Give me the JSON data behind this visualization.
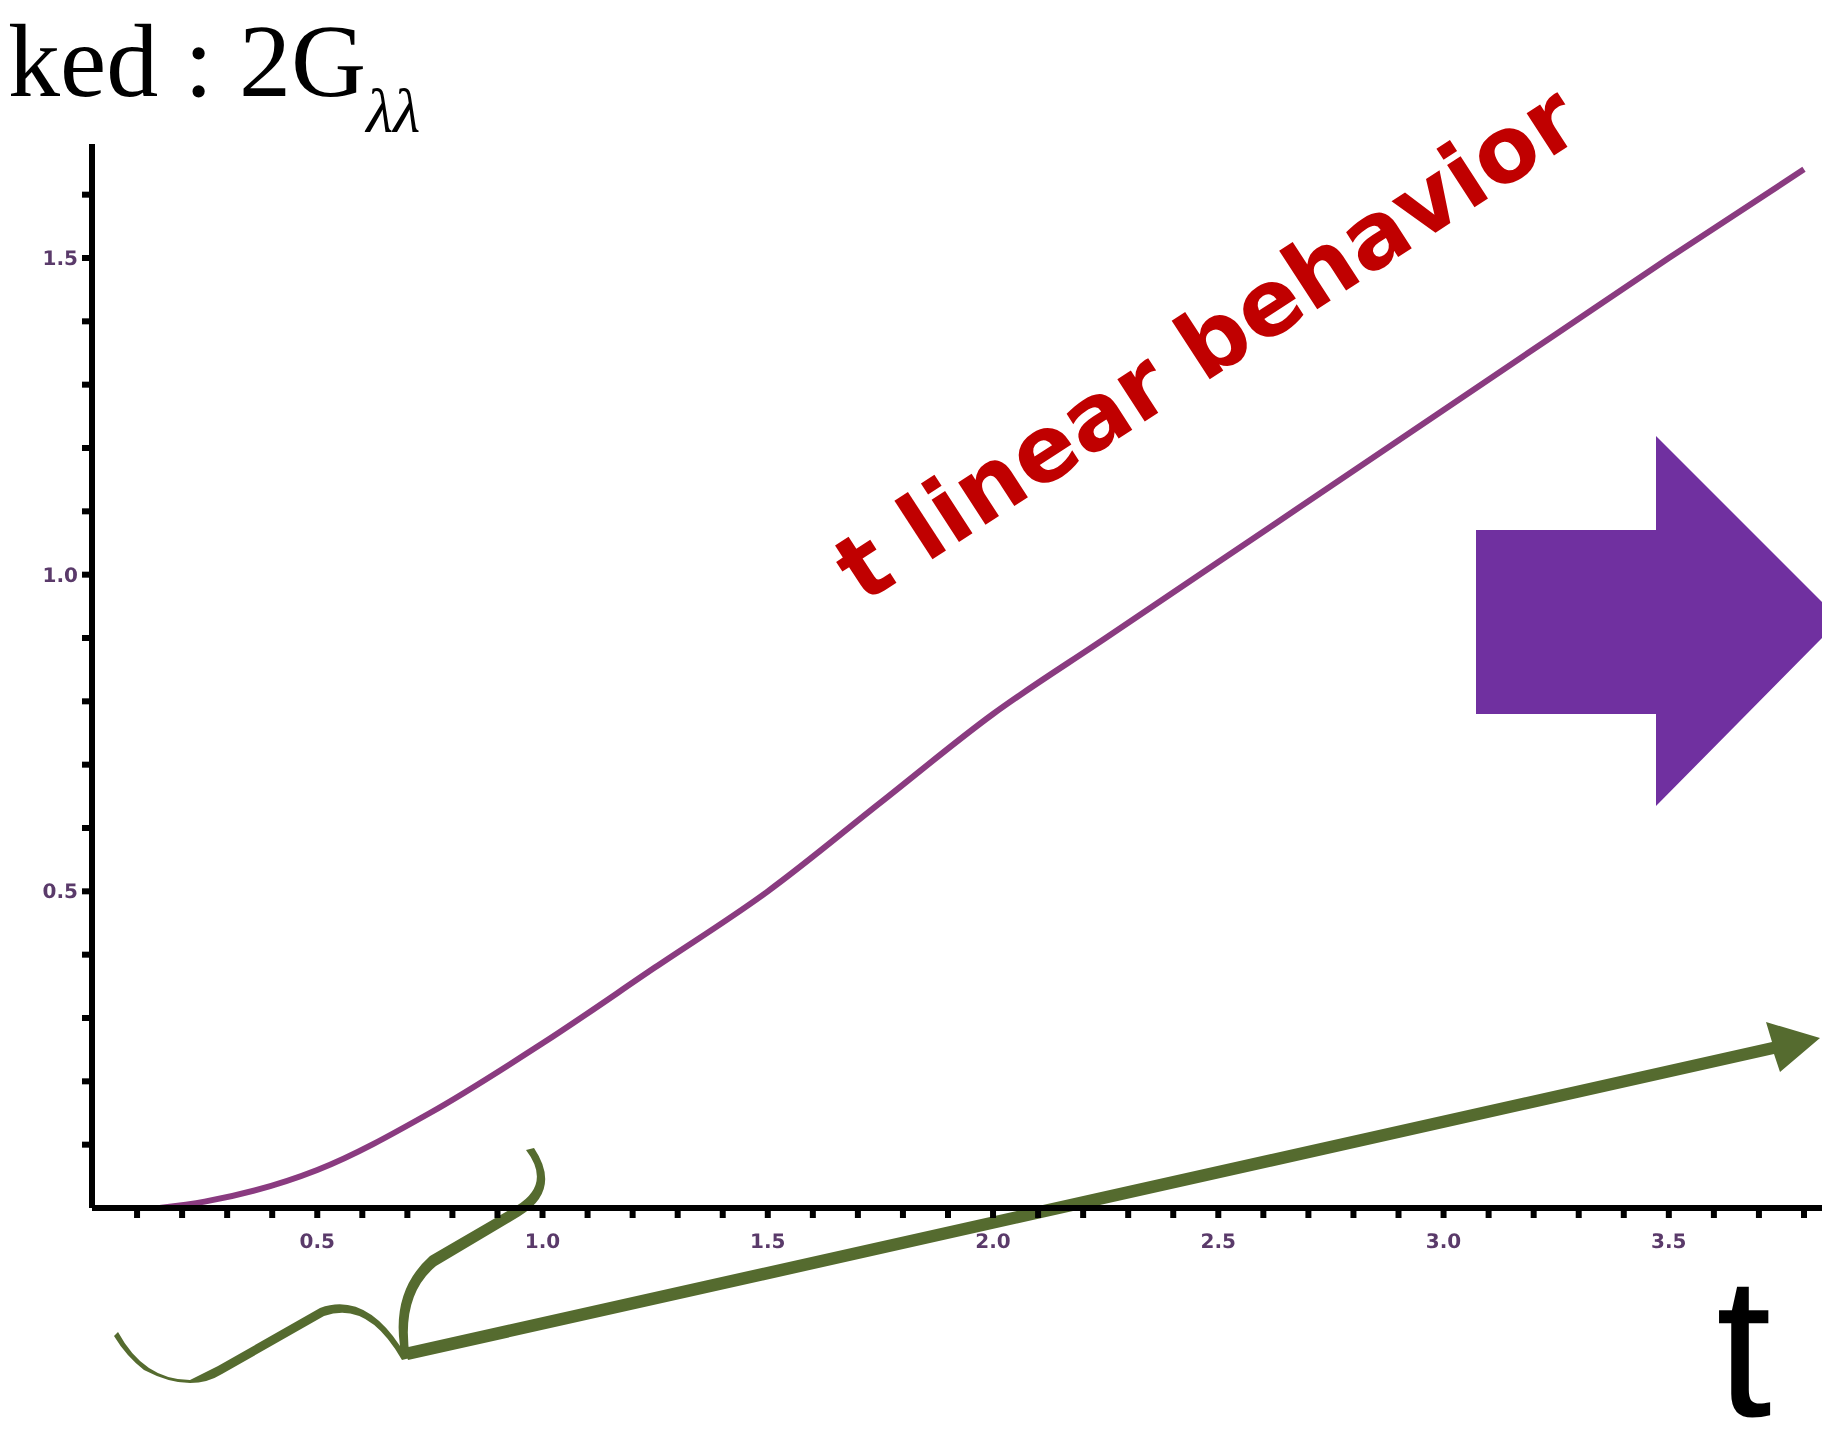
{
  "chart_data": {
    "type": "line",
    "title": "ked : 2G$_{λλ}$",
    "xlabel": "t",
    "annotations": [
      "t linear behavior"
    ],
    "x": [
      0.15,
      0.25,
      0.5,
      0.75,
      1.0,
      1.25,
      1.5,
      1.75,
      2.0,
      2.25,
      2.5,
      2.75,
      3.0,
      3.25,
      3.5,
      3.8
    ],
    "series": [
      {
        "color": "#8a3b80",
        "values": [
          0.0,
          0.01,
          0.06,
          0.15,
          0.26,
          0.38,
          0.5,
          0.64,
          0.78,
          0.9,
          1.02,
          1.14,
          1.26,
          1.38,
          1.5,
          1.64
        ]
      }
    ],
    "xlim": [
      0,
      3.84
    ],
    "ylim": [
      0,
      1.68
    ],
    "xticks": [
      {
        "value": 0.1,
        "label": null
      },
      {
        "value": 0.2,
        "label": null
      },
      {
        "value": 0.3,
        "label": null
      },
      {
        "value": 0.4,
        "label": null
      },
      {
        "value": 0.5,
        "label": "0.5"
      },
      {
        "value": 0.6,
        "label": null
      },
      {
        "value": 0.7,
        "label": null
      },
      {
        "value": 0.8,
        "label": null
      },
      {
        "value": 0.9,
        "label": null
      },
      {
        "value": 1.0,
        "label": "1.0"
      },
      {
        "value": 1.1,
        "label": null
      },
      {
        "value": 1.2,
        "label": null
      },
      {
        "value": 1.3,
        "label": null
      },
      {
        "value": 1.4,
        "label": null
      },
      {
        "value": 1.5,
        "label": "1.5"
      },
      {
        "value": 1.6,
        "label": null
      },
      {
        "value": 1.7,
        "label": null
      },
      {
        "value": 1.8,
        "label": null
      },
      {
        "value": 1.9,
        "label": null
      },
      {
        "value": 2.0,
        "label": "2.0"
      },
      {
        "value": 2.1,
        "label": null
      },
      {
        "value": 2.2,
        "label": null
      },
      {
        "value": 2.3,
        "label": null
      },
      {
        "value": 2.4,
        "label": null
      },
      {
        "value": 2.5,
        "label": "2.5"
      },
      {
        "value": 2.6,
        "label": null
      },
      {
        "value": 2.7,
        "label": null
      },
      {
        "value": 2.8,
        "label": null
      },
      {
        "value": 2.9,
        "label": null
      },
      {
        "value": 3.0,
        "label": "3.0"
      },
      {
        "value": 3.1,
        "label": null
      },
      {
        "value": 3.2,
        "label": null
      },
      {
        "value": 3.3,
        "label": null
      },
      {
        "value": 3.4,
        "label": null
      },
      {
        "value": 3.5,
        "label": "3.5"
      },
      {
        "value": 3.6,
        "label": null
      },
      {
        "value": 3.7,
        "label": null
      },
      {
        "value": 3.8,
        "label": null
      }
    ],
    "yticks": [
      {
        "value": 0.1,
        "label": null
      },
      {
        "value": 0.2,
        "label": null
      },
      {
        "value": 0.3,
        "label": null
      },
      {
        "value": 0.4,
        "label": null
      },
      {
        "value": 0.5,
        "label": "0.5"
      },
      {
        "value": 0.6,
        "label": null
      },
      {
        "value": 0.7,
        "label": null
      },
      {
        "value": 0.8,
        "label": null
      },
      {
        "value": 0.9,
        "label": null
      },
      {
        "value": 1.0,
        "label": "1.0"
      },
      {
        "value": 1.1,
        "label": null
      },
      {
        "value": 1.2,
        "label": null
      },
      {
        "value": 1.3,
        "label": null
      },
      {
        "value": 1.4,
        "label": null
      },
      {
        "value": 1.5,
        "label": "1.5"
      },
      {
        "value": 1.6,
        "label": null
      }
    ],
    "grid": false,
    "legend": false,
    "marker": "none",
    "line_style": "solid"
  }
}
